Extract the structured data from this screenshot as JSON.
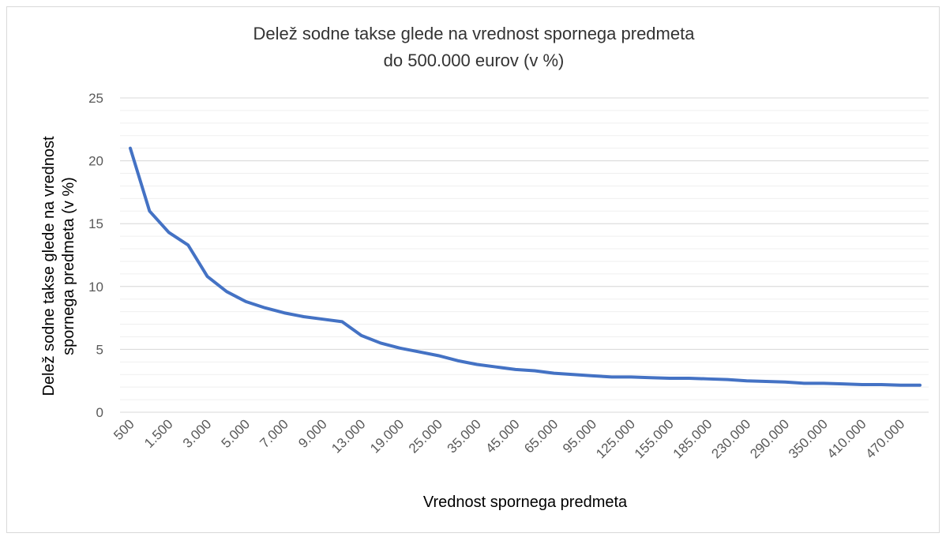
{
  "chart_data": {
    "type": "line",
    "title": [
      "Delež sodne takse glede na vrednost spornega predmeta",
      "do 500.000 eurov (v %)"
    ],
    "xlabel": "Vrednost spornega predmeta",
    "ylabel": [
      "Delež sodne takse glede na vrednost",
      "spornega predmeta (v %)"
    ],
    "categories": [
      "500",
      null,
      "1.500",
      null,
      "3.000",
      null,
      "5.000",
      null,
      "7.000",
      null,
      "9.000",
      null,
      "13.000",
      null,
      "19.000",
      null,
      "25.000",
      null,
      "35.000",
      null,
      "45.000",
      null,
      "65.000",
      null,
      "95.000",
      null,
      "125.000",
      null,
      "155.000",
      null,
      "185.000",
      null,
      "230.000",
      null,
      "290.000",
      null,
      "350.000",
      null,
      "410.000",
      null,
      "470.000",
      null
    ],
    "series": [
      {
        "name": "Delež sodne takse",
        "color": "#4472c4",
        "values": [
          21,
          16,
          14.3,
          13.3,
          10.8,
          9.6,
          8.8,
          8.3,
          7.9,
          7.6,
          7.4,
          7.2,
          6.1,
          5.5,
          5.1,
          4.8,
          4.5,
          4.1,
          3.8,
          3.6,
          3.4,
          3.3,
          3.1,
          3.0,
          2.9,
          2.8,
          2.8,
          2.75,
          2.7,
          2.7,
          2.65,
          2.6,
          2.5,
          2.45,
          2.4,
          2.3,
          2.3,
          2.25,
          2.2,
          2.2,
          2.15,
          2.15
        ]
      }
    ],
    "ylim": [
      0,
      25
    ],
    "yticks": [
      0,
      5,
      10,
      15,
      20,
      25
    ],
    "grid": true,
    "minor_grid_step": 1,
    "legend": false
  }
}
